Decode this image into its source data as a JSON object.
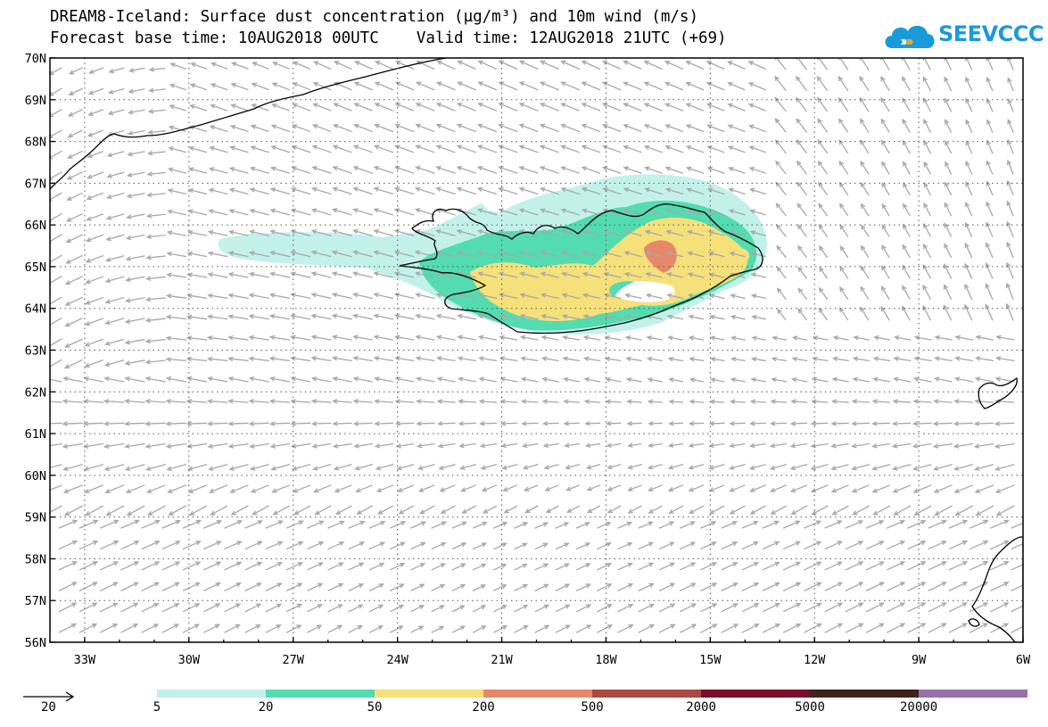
{
  "title": {
    "line1": "DREAM8-Iceland: Surface dust concentration (µg/m³) and 10m wind (m/s)",
    "line2": "Forecast base time: 10AUG2018 00UTC    Valid time: 12AUG2018 21UTC (+69)"
  },
  "logo": {
    "text": "SEEVCCC",
    "color": "#1a9ad9"
  },
  "axes": {
    "lon_range": [
      -34,
      -6
    ],
    "lat_range": [
      56,
      70
    ],
    "lon_ticks": [
      "33W",
      "30W",
      "27W",
      "24W",
      "21W",
      "18W",
      "15W",
      "12W",
      "9W",
      "6W"
    ],
    "lat_ticks": [
      "70N",
      "69N",
      "68N",
      "67N",
      "66N",
      "65N",
      "64N",
      "63N",
      "62N",
      "61N",
      "60N",
      "59N",
      "58N",
      "57N",
      "56N"
    ],
    "grid": "dotted"
  },
  "wind_legend": {
    "label": "20"
  },
  "colorbar": {
    "labels": [
      "5",
      "20",
      "50",
      "200",
      "500",
      "2000",
      "5000",
      "20000"
    ],
    "colors": [
      "#c2f1ea",
      "#52dcaf",
      "#f5e07a",
      "#e78769",
      "#a84a42",
      "#7b0a2b",
      "#40231a",
      "#9a71a6"
    ]
  },
  "colors": {
    "coast": "#000000",
    "wind_arrow": "#a8a8a8"
  }
}
